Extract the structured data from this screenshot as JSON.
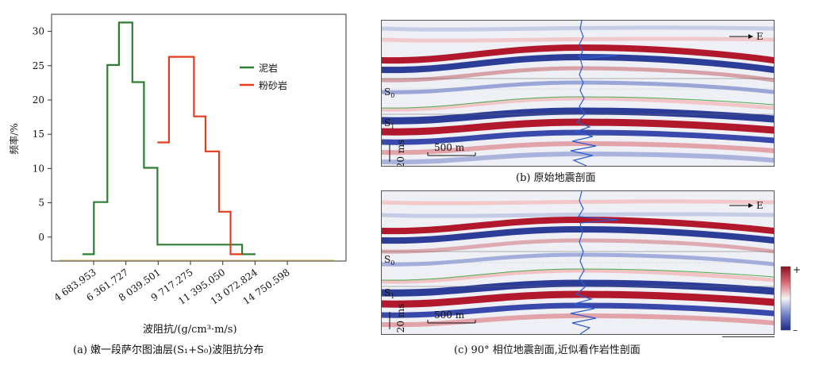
{
  "chart_data": {
    "type": "histogram-step",
    "title": "",
    "xlabel": "波阻抗/(g/cm³·m/s)",
    "ylabel": "频率/%",
    "xlim": [
      2500,
      17800
    ],
    "ylim": [
      -3.5,
      32.5
    ],
    "yticks": [
      0,
      5,
      10,
      15,
      20,
      25,
      30
    ],
    "xtick_values": [
      4683.953,
      6361.727,
      8039.501,
      9717.275,
      11395.05,
      13072.824,
      14750.598
    ],
    "xtick_labels": [
      "4 683.953",
      "6 361.727",
      "8 039.501",
      "9 717.275",
      "11 395.050",
      "13 072.824",
      "14 750.598"
    ],
    "legend": {
      "position": "top-right"
    },
    "series": [
      {
        "name": "泥岩",
        "color": "#2e7d32",
        "edges": [
          4100,
          4700,
          5400,
          6000,
          6700,
          7300,
          8000,
          8600,
          9300,
          9900,
          10500,
          11200,
          11800,
          12400,
          13100
        ],
        "values": [
          -2.5,
          5.1,
          25.1,
          31.3,
          22.6,
          10.1,
          -1.1,
          -1.1,
          -1.1,
          -1.1,
          -1.1,
          -1.1,
          -1.1,
          -2.5
        ]
      },
      {
        "name": "粉砂岩",
        "color": "#e83a1c",
        "edges": [
          8000,
          8600,
          9300,
          9900,
          10500,
          11200,
          11800,
          12400
        ],
        "values": [
          13.8,
          26.3,
          26.3,
          17.6,
          12.5,
          3.7,
          -2.5
        ]
      }
    ],
    "extra_trace": {
      "color": "#d4c27a",
      "from": 2900,
      "to": 17200,
      "value": -3.5
    }
  },
  "captions": {
    "a": "(a) 嫩一段萨尔图油层(S₁+S₀)波阻抗分布",
    "b": "(b) 原始地震剖面",
    "c": "(c) 90° 相位地震剖面,近似看作岩性剖面"
  },
  "panel_labels": {
    "direction": "E",
    "s0": "S",
    "s0_sub": "0",
    "s1": "S",
    "s1_sub": "1",
    "time_scale": "20 ms",
    "distance_scale": "500 m"
  },
  "colorbar": {
    "plus": "+",
    "minus": "–"
  },
  "colors": {
    "red": "#b2182b",
    "blue": "#2c3d98",
    "horizon": "#4caf50"
  }
}
